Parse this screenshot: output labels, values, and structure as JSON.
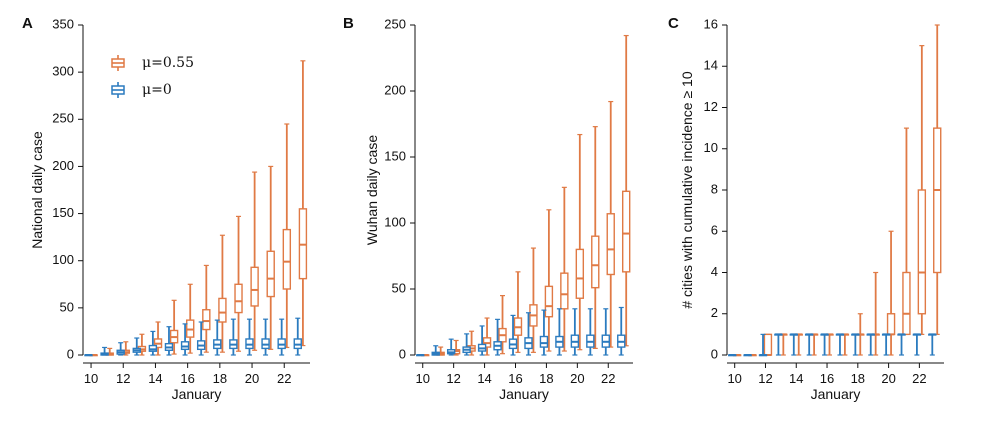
{
  "colors": {
    "mu055": "#E07A45",
    "mu0": "#2B7BBF",
    "axis": "#111111"
  },
  "legend": {
    "entries": [
      {
        "label": "μ=0.55",
        "color_key": "mu055"
      },
      {
        "label": "μ=0",
        "color_key": "mu0"
      }
    ]
  },
  "chart_data": [
    {
      "type": "box",
      "panel_letter": "A",
      "ylabel": "National daily case",
      "xlabel": "January",
      "ylim": [
        0,
        350
      ],
      "yticks": [
        0,
        50,
        100,
        150,
        200,
        250,
        300,
        350
      ],
      "xticks": [
        10,
        12,
        14,
        16,
        18,
        20,
        22
      ],
      "xlim": [
        9.5,
        23.6
      ],
      "series": [
        {
          "name": "μ=0.55",
          "color_key": "mu055",
          "offset": 0.16,
          "boxes": [
            {
              "x": 10,
              "whislo": 0,
              "q1": 0,
              "med": 0,
              "q3": 0,
              "whishi": 0
            },
            {
              "x": 11,
              "whislo": 0,
              "q1": 0,
              "med": 1,
              "q3": 2,
              "whishi": 7
            },
            {
              "x": 12,
              "whislo": 0,
              "q1": 2,
              "med": 3,
              "q3": 5,
              "whishi": 14
            },
            {
              "x": 13,
              "whislo": 0,
              "q1": 4,
              "med": 6,
              "q3": 9,
              "whishi": 22
            },
            {
              "x": 14,
              "whislo": 0,
              "q1": 8,
              "med": 12,
              "q3": 17,
              "whishi": 35
            },
            {
              "x": 15,
              "whislo": 1,
              "q1": 13,
              "med": 19,
              "q3": 26,
              "whishi": 58
            },
            {
              "x": 16,
              "whislo": 2,
              "q1": 19,
              "med": 27,
              "q3": 37,
              "whishi": 75
            },
            {
              "x": 17,
              "whislo": 3,
              "q1": 27,
              "med": 36,
              "q3": 48,
              "whishi": 95
            },
            {
              "x": 18,
              "whislo": 3,
              "q1": 35,
              "med": 45,
              "q3": 60,
              "whishi": 127
            },
            {
              "x": 19,
              "whislo": 4,
              "q1": 45,
              "med": 57,
              "q3": 75,
              "whishi": 147
            },
            {
              "x": 20,
              "whislo": 5,
              "q1": 52,
              "med": 69,
              "q3": 93,
              "whishi": 194
            },
            {
              "x": 21,
              "whislo": 6,
              "q1": 62,
              "med": 81,
              "q3": 110,
              "whishi": 200
            },
            {
              "x": 22,
              "whislo": 8,
              "q1": 70,
              "med": 99,
              "q3": 133,
              "whishi": 245
            },
            {
              "x": 23,
              "whislo": 10,
              "q1": 81,
              "med": 117,
              "q3": 155,
              "whishi": 312
            }
          ]
        },
        {
          "name": "μ=0",
          "color_key": "mu0",
          "offset": -0.16,
          "boxes": [
            {
              "x": 10,
              "whislo": 0,
              "q1": 0,
              "med": 0,
              "q3": 0,
              "whishi": 0
            },
            {
              "x": 11,
              "whislo": 0,
              "q1": 0,
              "med": 1,
              "q3": 2,
              "whishi": 8
            },
            {
              "x": 12,
              "whislo": 0,
              "q1": 1,
              "med": 3,
              "q3": 5,
              "whishi": 13
            },
            {
              "x": 13,
              "whislo": 0,
              "q1": 3,
              "med": 5,
              "q3": 7,
              "whishi": 18
            },
            {
              "x": 14,
              "whislo": 0,
              "q1": 4,
              "med": 6,
              "q3": 10,
              "whishi": 25
            },
            {
              "x": 15,
              "whislo": 0,
              "q1": 5,
              "med": 8,
              "q3": 12,
              "whishi": 30
            },
            {
              "x": 16,
              "whislo": 0,
              "q1": 6,
              "med": 9,
              "q3": 14,
              "whishi": 33
            },
            {
              "x": 17,
              "whislo": 0,
              "q1": 6,
              "med": 10,
              "q3": 15,
              "whishi": 35
            },
            {
              "x": 18,
              "whislo": 0,
              "q1": 7,
              "med": 11,
              "q3": 16,
              "whishi": 37
            },
            {
              "x": 19,
              "whislo": 0,
              "q1": 7,
              "med": 11,
              "q3": 16,
              "whishi": 38
            },
            {
              "x": 20,
              "whislo": 0,
              "q1": 7,
              "med": 11,
              "q3": 17,
              "whishi": 38
            },
            {
              "x": 21,
              "whislo": 0,
              "q1": 7,
              "med": 11,
              "q3": 17,
              "whishi": 38
            },
            {
              "x": 22,
              "whislo": 0,
              "q1": 7,
              "med": 11,
              "q3": 17,
              "whishi": 38
            },
            {
              "x": 23,
              "whislo": 0,
              "q1": 7,
              "med": 11,
              "q3": 17,
              "whishi": 39
            }
          ]
        }
      ]
    },
    {
      "type": "box",
      "panel_letter": "B",
      "ylabel": "Wuhan daily case",
      "xlabel": "January",
      "ylim": [
        0,
        250
      ],
      "yticks": [
        0,
        50,
        100,
        150,
        200,
        250
      ],
      "xticks": [
        10,
        12,
        14,
        16,
        18,
        20,
        22
      ],
      "xlim": [
        9.5,
        23.6
      ],
      "series": [
        {
          "name": "μ=0.55",
          "color_key": "mu055",
          "offset": 0.16,
          "boxes": [
            {
              "x": 10,
              "whislo": 0,
              "q1": 0,
              "med": 0,
              "q3": 0,
              "whishi": 0
            },
            {
              "x": 11,
              "whislo": 0,
              "q1": 0,
              "med": 1,
              "q3": 2,
              "whishi": 6
            },
            {
              "x": 12,
              "whislo": 0,
              "q1": 1,
              "med": 3,
              "q3": 4,
              "whishi": 11
            },
            {
              "x": 13,
              "whislo": 0,
              "q1": 3,
              "med": 5,
              "q3": 7,
              "whishi": 18
            },
            {
              "x": 14,
              "whislo": 0,
              "q1": 6,
              "med": 9,
              "q3": 13,
              "whishi": 28
            },
            {
              "x": 15,
              "whislo": 1,
              "q1": 10,
              "med": 15,
              "q3": 20,
              "whishi": 45
            },
            {
              "x": 16,
              "whislo": 2,
              "q1": 15,
              "med": 21,
              "q3": 28,
              "whishi": 63
            },
            {
              "x": 17,
              "whislo": 2,
              "q1": 22,
              "med": 30,
              "q3": 38,
              "whishi": 81
            },
            {
              "x": 18,
              "whislo": 3,
              "q1": 29,
              "med": 37,
              "q3": 52,
              "whishi": 110
            },
            {
              "x": 19,
              "whislo": 3,
              "q1": 35,
              "med": 46,
              "q3": 62,
              "whishi": 127
            },
            {
              "x": 20,
              "whislo": 4,
              "q1": 43,
              "med": 58,
              "q3": 80,
              "whishi": 167
            },
            {
              "x": 21,
              "whislo": 5,
              "q1": 51,
              "med": 68,
              "q3": 90,
              "whishi": 173
            },
            {
              "x": 22,
              "whislo": 6,
              "q1": 61,
              "med": 80,
              "q3": 107,
              "whishi": 192
            },
            {
              "x": 23,
              "whislo": 7,
              "q1": 63,
              "med": 92,
              "q3": 124,
              "whishi": 242
            }
          ]
        },
        {
          "name": "μ=0",
          "color_key": "mu0",
          "offset": -0.16,
          "boxes": [
            {
              "x": 10,
              "whislo": 0,
              "q1": 0,
              "med": 0,
              "q3": 0,
              "whishi": 0
            },
            {
              "x": 11,
              "whislo": 0,
              "q1": 0,
              "med": 1,
              "q3": 2,
              "whishi": 7
            },
            {
              "x": 12,
              "whislo": 0,
              "q1": 1,
              "med": 2,
              "q3": 4,
              "whishi": 12
            },
            {
              "x": 13,
              "whislo": 0,
              "q1": 2,
              "med": 4,
              "q3": 6,
              "whishi": 16
            },
            {
              "x": 14,
              "whislo": 0,
              "q1": 3,
              "med": 5,
              "q3": 8,
              "whishi": 22
            },
            {
              "x": 15,
              "whislo": 0,
              "q1": 4,
              "med": 7,
              "q3": 10,
              "whishi": 27
            },
            {
              "x": 16,
              "whislo": 0,
              "q1": 5,
              "med": 8,
              "q3": 12,
              "whishi": 30
            },
            {
              "x": 17,
              "whislo": 0,
              "q1": 5,
              "med": 9,
              "q3": 13,
              "whishi": 32
            },
            {
              "x": 18,
              "whislo": 0,
              "q1": 6,
              "med": 9,
              "q3": 14,
              "whishi": 34
            },
            {
              "x": 19,
              "whislo": 0,
              "q1": 6,
              "med": 10,
              "q3": 14,
              "whishi": 35
            },
            {
              "x": 20,
              "whislo": 0,
              "q1": 6,
              "med": 10,
              "q3": 15,
              "whishi": 35
            },
            {
              "x": 21,
              "whislo": 0,
              "q1": 6,
              "med": 10,
              "q3": 15,
              "whishi": 35
            },
            {
              "x": 22,
              "whislo": 0,
              "q1": 6,
              "med": 10,
              "q3": 15,
              "whishi": 35
            },
            {
              "x": 23,
              "whislo": 0,
              "q1": 6,
              "med": 10,
              "q3": 15,
              "whishi": 36
            }
          ]
        }
      ]
    },
    {
      "type": "box",
      "panel_letter": "C",
      "ylabel": "# cities with cumulative incidence ≥ 10",
      "xlabel": "January",
      "ylim": [
        0,
        16
      ],
      "yticks": [
        0,
        2,
        4,
        6,
        8,
        10,
        12,
        14,
        16
      ],
      "xticks": [
        10,
        12,
        14,
        16,
        18,
        20,
        22
      ],
      "xlim": [
        9.5,
        23.6
      ],
      "series": [
        {
          "name": "μ=0.55",
          "color_key": "mu055",
          "offset": 0.16,
          "boxes": [
            {
              "x": 10,
              "whislo": 0,
              "q1": 0,
              "med": 0,
              "q3": 0,
              "whishi": 0
            },
            {
              "x": 11,
              "whislo": 0,
              "q1": 0,
              "med": 0,
              "q3": 0,
              "whishi": 0
            },
            {
              "x": 12,
              "whislo": 0,
              "q1": 0,
              "med": 0,
              "q3": 1,
              "whishi": 1
            },
            {
              "x": 13,
              "whislo": 0,
              "q1": 1,
              "med": 1,
              "q3": 1,
              "whishi": 1
            },
            {
              "x": 14,
              "whislo": 0,
              "q1": 1,
              "med": 1,
              "q3": 1,
              "whishi": 1
            },
            {
              "x": 15,
              "whislo": 0,
              "q1": 1,
              "med": 1,
              "q3": 1,
              "whishi": 1
            },
            {
              "x": 16,
              "whislo": 0,
              "q1": 1,
              "med": 1,
              "q3": 1,
              "whishi": 1
            },
            {
              "x": 17,
              "whislo": 0,
              "q1": 1,
              "med": 1,
              "q3": 1,
              "whishi": 1
            },
            {
              "x": 18,
              "whislo": 0,
              "q1": 1,
              "med": 1,
              "q3": 1,
              "whishi": 2
            },
            {
              "x": 19,
              "whislo": 0,
              "q1": 1,
              "med": 1,
              "q3": 1,
              "whishi": 4
            },
            {
              "x": 20,
              "whislo": 0,
              "q1": 1,
              "med": 1,
              "q3": 2,
              "whishi": 6
            },
            {
              "x": 21,
              "whislo": 1,
              "q1": 1,
              "med": 2,
              "q3": 4,
              "whishi": 11
            },
            {
              "x": 22,
              "whislo": 1,
              "q1": 2,
              "med": 4,
              "q3": 8,
              "whishi": 15
            },
            {
              "x": 23,
              "whislo": 1,
              "q1": 4,
              "med": 8,
              "q3": 11,
              "whishi": 16
            }
          ]
        },
        {
          "name": "μ=0",
          "color_key": "mu0",
          "offset": -0.16,
          "boxes": [
            {
              "x": 10,
              "whislo": 0,
              "q1": 0,
              "med": 0,
              "q3": 0,
              "whishi": 0
            },
            {
              "x": 11,
              "whislo": 0,
              "q1": 0,
              "med": 0,
              "q3": 0,
              "whishi": 0
            },
            {
              "x": 12,
              "whislo": 0,
              "q1": 0,
              "med": 0,
              "q3": 0,
              "whishi": 1
            },
            {
              "x": 13,
              "whislo": 0,
              "q1": 1,
              "med": 1,
              "q3": 1,
              "whishi": 1
            },
            {
              "x": 14,
              "whislo": 0,
              "q1": 1,
              "med": 1,
              "q3": 1,
              "whishi": 1
            },
            {
              "x": 15,
              "whislo": 0,
              "q1": 1,
              "med": 1,
              "q3": 1,
              "whishi": 1
            },
            {
              "x": 16,
              "whislo": 0,
              "q1": 1,
              "med": 1,
              "q3": 1,
              "whishi": 1
            },
            {
              "x": 17,
              "whislo": 0,
              "q1": 1,
              "med": 1,
              "q3": 1,
              "whishi": 1
            },
            {
              "x": 18,
              "whislo": 0,
              "q1": 1,
              "med": 1,
              "q3": 1,
              "whishi": 1
            },
            {
              "x": 19,
              "whislo": 0,
              "q1": 1,
              "med": 1,
              "q3": 1,
              "whishi": 1
            },
            {
              "x": 20,
              "whislo": 0,
              "q1": 1,
              "med": 1,
              "q3": 1,
              "whishi": 1
            },
            {
              "x": 21,
              "whislo": 0,
              "q1": 1,
              "med": 1,
              "q3": 1,
              "whishi": 1
            },
            {
              "x": 22,
              "whislo": 0,
              "q1": 1,
              "med": 1,
              "q3": 1,
              "whishi": 1
            },
            {
              "x": 23,
              "whislo": 0,
              "q1": 1,
              "med": 1,
              "q3": 1,
              "whishi": 1
            }
          ]
        }
      ]
    }
  ]
}
